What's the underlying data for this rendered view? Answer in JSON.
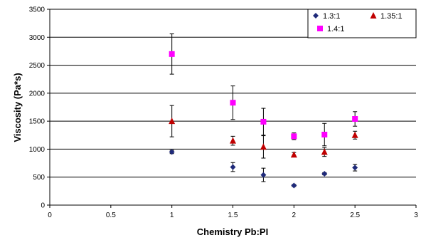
{
  "chart_data": {
    "type": "scatter",
    "title": "",
    "xlabel": "Chemistry Pb:PI",
    "ylabel": "Viscosity (Pa*s)",
    "xlim": [
      0,
      3
    ],
    "ylim": [
      0,
      3500
    ],
    "x_ticks": [
      0,
      0.5,
      1,
      1.5,
      2,
      2.5,
      3
    ],
    "y_ticks": [
      0,
      500,
      1000,
      1500,
      2000,
      2500,
      3000,
      3500
    ],
    "x_tick_labels": [
      "0",
      "0.5",
      "1",
      "1.5",
      "2",
      "2.5",
      "3"
    ],
    "y_tick_labels": [
      "0",
      "500",
      "1000",
      "1500",
      "2000",
      "2500",
      "3000",
      "3500"
    ],
    "grid": "horizontal major",
    "legend_position": "top-right",
    "series": [
      {
        "name": "1.3:1",
        "marker": "diamond",
        "color": "#1F2A7A",
        "points": [
          {
            "x": 1.0,
            "y": 950,
            "err": 30
          },
          {
            "x": 1.5,
            "y": 680,
            "err": 80
          },
          {
            "x": 1.75,
            "y": 540,
            "err": 120
          },
          {
            "x": 2.0,
            "y": 350,
            "err": 20
          },
          {
            "x": 2.25,
            "y": 560,
            "err": 20
          },
          {
            "x": 2.5,
            "y": 670,
            "err": 60
          }
        ]
      },
      {
        "name": "1.35:1",
        "marker": "triangle",
        "color": "#C00000",
        "points": [
          {
            "x": 1.0,
            "y": 1500,
            "err": 280
          },
          {
            "x": 1.5,
            "y": 1150,
            "err": 80
          },
          {
            "x": 1.75,
            "y": 1040,
            "err": 200
          },
          {
            "x": 2.0,
            "y": 900,
            "err": 40
          },
          {
            "x": 2.25,
            "y": 950,
            "err": 80
          },
          {
            "x": 2.5,
            "y": 1250,
            "err": 70
          }
        ]
      },
      {
        "name": "1.4:1",
        "marker": "square",
        "color": "#FF00FF",
        "points": [
          {
            "x": 1.0,
            "y": 2700,
            "err": 360
          },
          {
            "x": 1.5,
            "y": 1830,
            "err": 300
          },
          {
            "x": 1.75,
            "y": 1490,
            "err": 240
          },
          {
            "x": 2.0,
            "y": 1230,
            "err": 60
          },
          {
            "x": 2.25,
            "y": 1260,
            "err": 200
          },
          {
            "x": 2.5,
            "y": 1540,
            "err": 130
          }
        ]
      }
    ]
  }
}
